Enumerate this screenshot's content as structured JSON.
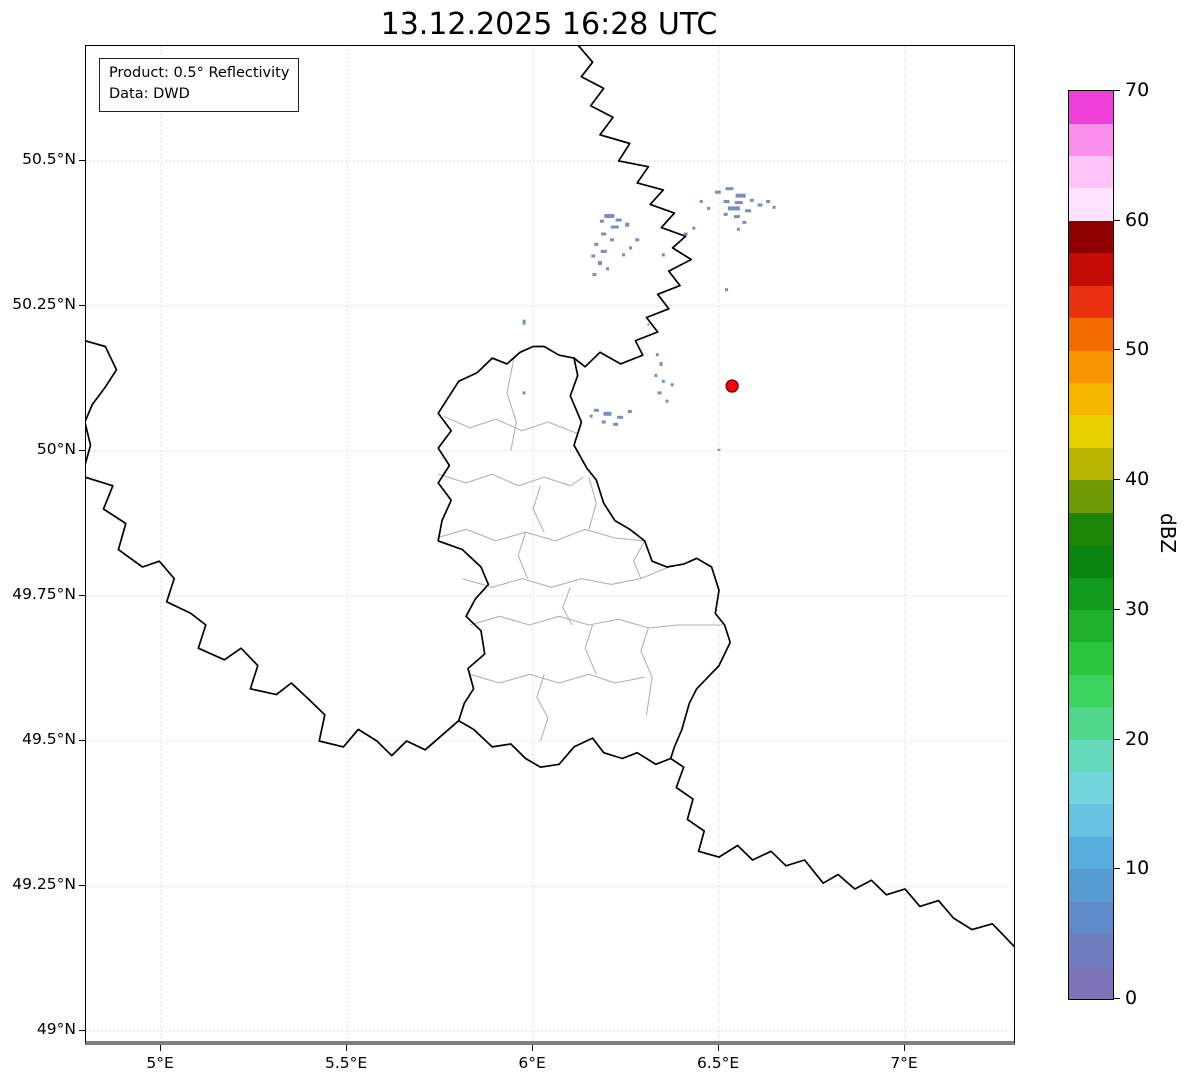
{
  "title": "13.12.2025 16:28 UTC",
  "info_box": {
    "product": "Product: 0.5° Reflectivity",
    "data_source": "Data: DWD"
  },
  "axes": {
    "x_ticks": [
      {
        "label": "5°E",
        "lon": 5.0
      },
      {
        "label": "5.5°E",
        "lon": 5.5
      },
      {
        "label": "6°E",
        "lon": 6.0
      },
      {
        "label": "6.5°E",
        "lon": 6.5
      },
      {
        "label": "7°E",
        "lon": 7.0
      }
    ],
    "y_ticks": [
      {
        "label": "50.5°N",
        "lat": 50.5
      },
      {
        "label": "50.25°N",
        "lat": 50.25
      },
      {
        "label": "50°N",
        "lat": 50.0
      },
      {
        "label": "49.75°N",
        "lat": 49.75
      },
      {
        "label": "49.5°N",
        "lat": 49.5
      },
      {
        "label": "49.25°N",
        "lat": 49.25
      },
      {
        "label": "49°N",
        "lat": 49.0
      }
    ]
  },
  "colorbar": {
    "label": "dBZ",
    "unit_min": 0,
    "unit_max": 70,
    "ticks": [
      0,
      10,
      20,
      30,
      40,
      50,
      60,
      70
    ],
    "colors": [
      "#7e72b8",
      "#6f7cc0",
      "#5f8ac8",
      "#569bd2",
      "#57aede",
      "#67c2e4",
      "#73d4dd",
      "#66d9bd",
      "#4fd88c",
      "#3bd45e",
      "#2cc53e",
      "#1eb02a",
      "#129a1c",
      "#0a8512",
      "#1d8508",
      "#6f9a04",
      "#b8b400",
      "#e8cf00",
      "#f6b600",
      "#f79500",
      "#f26a00",
      "#e93010",
      "#c50b06",
      "#8f0000",
      "#ffe2ff",
      "#ffc2f9",
      "#fb90ec",
      "#ee3fd8"
    ]
  },
  "map_data": {
    "projection": {
      "lon_min": 4.798,
      "lon_max": 7.293,
      "lat_min": 48.983,
      "lat_max": 50.698
    },
    "borders_country": [
      [
        [
          6.12,
          50.7
        ],
        [
          6.16,
          50.67
        ],
        [
          6.13,
          50.645
        ],
        [
          6.19,
          50.625
        ],
        [
          6.155,
          50.595
        ],
        [
          6.215,
          50.575
        ],
        [
          6.18,
          50.545
        ],
        [
          6.26,
          50.53
        ],
        [
          6.23,
          50.5
        ],
        [
          6.31,
          50.49
        ],
        [
          6.28,
          50.462
        ],
        [
          6.35,
          50.45
        ],
        [
          6.315,
          50.425
        ],
        [
          6.38,
          50.41
        ],
        [
          6.345,
          50.385
        ],
        [
          6.41,
          50.37
        ],
        [
          6.375,
          50.35
        ],
        [
          6.425,
          50.33
        ],
        [
          6.365,
          50.31
        ],
        [
          6.395,
          50.285
        ],
        [
          6.335,
          50.27
        ],
        [
          6.365,
          50.245
        ],
        [
          6.305,
          50.23
        ],
        [
          6.335,
          50.205
        ],
        [
          6.275,
          50.19
        ],
        [
          6.295,
          50.165
        ],
        [
          6.235,
          50.15
        ],
        [
          6.18,
          50.17
        ],
        [
          6.14,
          50.145
        ],
        [
          6.11,
          50.16
        ]
      ],
      [
        [
          6.03,
          50.18
        ],
        [
          6.07,
          50.165
        ],
        [
          6.11,
          50.16
        ],
        [
          6.12,
          50.13
        ],
        [
          6.1,
          50.095
        ],
        [
          6.13,
          50.05
        ],
        [
          6.11,
          50.01
        ],
        [
          6.145,
          49.97
        ],
        [
          6.17,
          49.95
        ],
        [
          6.19,
          49.91
        ],
        [
          6.22,
          49.88
        ],
        [
          6.26,
          49.865
        ],
        [
          6.3,
          49.845
        ],
        [
          6.32,
          49.81
        ],
        [
          6.36,
          49.8
        ],
        [
          6.405,
          49.805
        ],
        [
          6.44,
          49.815
        ],
        [
          6.48,
          49.8
        ],
        [
          6.5,
          49.76
        ],
        [
          6.49,
          49.72
        ],
        [
          6.515,
          49.7
        ],
        [
          6.53,
          49.67
        ],
        [
          6.5,
          49.63
        ],
        [
          6.47,
          49.61
        ],
        [
          6.44,
          49.59
        ],
        [
          6.42,
          49.565
        ],
        [
          6.4,
          49.52
        ],
        [
          6.38,
          49.49
        ],
        [
          6.37,
          49.47
        ],
        [
          6.33,
          49.46
        ],
        [
          6.28,
          49.48
        ],
        [
          6.24,
          49.47
        ],
        [
          6.19,
          49.48
        ],
        [
          6.16,
          49.505
        ],
        [
          6.11,
          49.49
        ],
        [
          6.07,
          49.46
        ],
        [
          6.02,
          49.455
        ],
        [
          5.98,
          49.47
        ],
        [
          5.94,
          49.495
        ],
        [
          5.89,
          49.49
        ],
        [
          5.84,
          49.52
        ],
        [
          5.8,
          49.535
        ],
        [
          5.815,
          49.565
        ],
        [
          5.84,
          49.59
        ],
        [
          5.825,
          49.625
        ],
        [
          5.87,
          49.65
        ],
        [
          5.86,
          49.69
        ],
        [
          5.82,
          49.715
        ],
        [
          5.845,
          49.745
        ],
        [
          5.88,
          49.77
        ],
        [
          5.86,
          49.8
        ],
        [
          5.81,
          49.83
        ],
        [
          5.745,
          49.845
        ],
        [
          5.755,
          49.88
        ],
        [
          5.78,
          49.915
        ],
        [
          5.745,
          49.945
        ],
        [
          5.775,
          49.975
        ],
        [
          5.745,
          50.005
        ],
        [
          5.78,
          50.035
        ],
        [
          5.745,
          50.065
        ],
        [
          5.775,
          50.095
        ],
        [
          5.8,
          50.12
        ],
        [
          5.85,
          50.135
        ],
        [
          5.89,
          50.16
        ],
        [
          5.93,
          50.15
        ],
        [
          5.965,
          50.17
        ],
        [
          6.0,
          50.18
        ],
        [
          6.03,
          50.18
        ]
      ],
      [
        [
          4.795,
          50.19
        ],
        [
          4.85,
          50.18
        ],
        [
          4.88,
          50.14
        ],
        [
          4.85,
          50.11
        ],
        [
          4.815,
          50.08
        ],
        [
          4.795,
          50.05
        ],
        [
          4.81,
          50.01
        ],
        [
          4.795,
          49.975
        ]
      ],
      [
        [
          4.795,
          49.955
        ],
        [
          4.87,
          49.94
        ],
        [
          4.845,
          49.9
        ],
        [
          4.905,
          49.875
        ],
        [
          4.885,
          49.83
        ],
        [
          4.95,
          49.8
        ],
        [
          4.995,
          49.81
        ],
        [
          5.035,
          49.78
        ],
        [
          5.015,
          49.74
        ],
        [
          5.08,
          49.72
        ],
        [
          5.12,
          49.7
        ],
        [
          5.1,
          49.66
        ],
        [
          5.17,
          49.64
        ],
        [
          5.215,
          49.66
        ],
        [
          5.26,
          49.63
        ],
        [
          5.24,
          49.59
        ],
        [
          5.31,
          49.58
        ],
        [
          5.35,
          49.6
        ],
        [
          5.4,
          49.57
        ],
        [
          5.44,
          49.545
        ],
        [
          5.425,
          49.5
        ],
        [
          5.49,
          49.49
        ],
        [
          5.53,
          49.52
        ],
        [
          5.58,
          49.5
        ],
        [
          5.62,
          49.475
        ],
        [
          5.66,
          49.5
        ],
        [
          5.71,
          49.485
        ],
        [
          5.755,
          49.51
        ],
        [
          5.8,
          49.535
        ]
      ],
      [
        [
          6.37,
          49.47
        ],
        [
          6.405,
          49.455
        ],
        [
          6.385,
          49.42
        ],
        [
          6.43,
          49.4
        ],
        [
          6.415,
          49.365
        ],
        [
          6.46,
          49.345
        ],
        [
          6.445,
          49.31
        ],
        [
          6.5,
          49.3
        ],
        [
          6.55,
          49.32
        ],
        [
          6.59,
          49.295
        ],
        [
          6.64,
          49.31
        ],
        [
          6.68,
          49.285
        ],
        [
          6.73,
          49.295
        ],
        [
          6.78,
          49.255
        ],
        [
          6.82,
          49.27
        ],
        [
          6.865,
          49.245
        ],
        [
          6.91,
          49.26
        ],
        [
          6.95,
          49.235
        ],
        [
          7.0,
          49.245
        ],
        [
          7.04,
          49.215
        ],
        [
          7.09,
          49.225
        ],
        [
          7.13,
          49.195
        ],
        [
          7.18,
          49.175
        ],
        [
          7.235,
          49.185
        ],
        [
          7.295,
          49.145
        ]
      ]
    ],
    "borders_district": [
      [
        [
          5.76,
          50.06
        ],
        [
          5.83,
          50.04
        ],
        [
          5.9,
          50.055
        ],
        [
          5.97,
          50.035
        ],
        [
          6.04,
          50.05
        ],
        [
          6.12,
          50.03
        ]
      ],
      [
        [
          5.745,
          49.96
        ],
        [
          5.82,
          49.945
        ],
        [
          5.89,
          49.96
        ],
        [
          5.96,
          49.94
        ],
        [
          6.03,
          49.955
        ],
        [
          6.1,
          49.94
        ],
        [
          6.135,
          49.955
        ]
      ],
      [
        [
          5.95,
          50.165
        ],
        [
          5.93,
          50.1
        ],
        [
          5.955,
          50.05
        ],
        [
          5.94,
          50.0
        ]
      ],
      [
        [
          5.74,
          49.85
        ],
        [
          5.82,
          49.865
        ],
        [
          5.9,
          49.845
        ],
        [
          5.98,
          49.86
        ],
        [
          6.06,
          49.845
        ],
        [
          6.14,
          49.865
        ],
        [
          6.22,
          49.85
        ],
        [
          6.3,
          49.845
        ]
      ],
      [
        [
          6.02,
          49.94
        ],
        [
          6.0,
          49.9
        ],
        [
          6.03,
          49.86
        ]
      ],
      [
        [
          6.15,
          49.955
        ],
        [
          6.17,
          49.91
        ],
        [
          6.15,
          49.865
        ]
      ],
      [
        [
          5.81,
          49.78
        ],
        [
          5.89,
          49.765
        ],
        [
          5.97,
          49.78
        ],
        [
          6.05,
          49.765
        ],
        [
          6.13,
          49.78
        ],
        [
          6.21,
          49.77
        ],
        [
          6.29,
          49.78
        ],
        [
          6.365,
          49.8
        ]
      ],
      [
        [
          5.98,
          49.86
        ],
        [
          5.96,
          49.82
        ],
        [
          5.985,
          49.78
        ]
      ],
      [
        [
          6.3,
          49.845
        ],
        [
          6.27,
          49.81
        ],
        [
          6.29,
          49.78
        ]
      ],
      [
        [
          5.83,
          49.7
        ],
        [
          5.91,
          49.715
        ],
        [
          5.99,
          49.7
        ],
        [
          6.07,
          49.715
        ],
        [
          6.15,
          49.7
        ],
        [
          6.23,
          49.71
        ],
        [
          6.31,
          49.695
        ],
        [
          6.39,
          49.7
        ],
        [
          6.51,
          49.7
        ]
      ],
      [
        [
          6.1,
          49.765
        ],
        [
          6.08,
          49.73
        ],
        [
          6.105,
          49.7
        ]
      ],
      [
        [
          6.31,
          49.695
        ],
        [
          6.29,
          49.655
        ],
        [
          6.32,
          49.61
        ],
        [
          6.305,
          49.545
        ]
      ],
      [
        [
          5.83,
          49.615
        ],
        [
          5.91,
          49.6
        ],
        [
          5.99,
          49.615
        ],
        [
          6.07,
          49.6
        ],
        [
          6.15,
          49.615
        ],
        [
          6.22,
          49.6
        ],
        [
          6.3,
          49.61
        ]
      ],
      [
        [
          6.03,
          49.615
        ],
        [
          6.01,
          49.575
        ],
        [
          6.04,
          49.54
        ],
        [
          6.02,
          49.5
        ]
      ],
      [
        [
          6.16,
          49.7
        ],
        [
          6.14,
          49.66
        ],
        [
          6.17,
          49.615
        ]
      ]
    ],
    "radar_echoes": {
      "color": "#7b8cc4",
      "cells": [
        [
          6.205,
          50.405,
          10,
          4
        ],
        [
          6.23,
          50.398,
          6,
          3
        ],
        [
          6.185,
          50.396,
          4,
          3
        ],
        [
          6.22,
          50.386,
          8,
          3
        ],
        [
          6.253,
          50.39,
          4,
          4
        ],
        [
          6.19,
          50.374,
          5,
          3
        ],
        [
          6.212,
          50.364,
          4,
          3
        ],
        [
          6.17,
          50.356,
          4,
          3
        ],
        [
          6.19,
          50.344,
          6,
          3
        ],
        [
          6.162,
          50.336,
          4,
          3
        ],
        [
          6.18,
          50.324,
          4,
          4
        ],
        [
          6.2,
          50.314,
          3,
          3
        ],
        [
          6.165,
          50.304,
          4,
          3
        ],
        [
          6.28,
          50.364,
          4,
          3
        ],
        [
          6.262,
          50.35,
          3,
          3
        ],
        [
          6.243,
          50.338,
          3,
          3
        ],
        [
          6.497,
          50.446,
          6,
          3
        ],
        [
          6.528,
          50.452,
          8,
          3
        ],
        [
          6.558,
          50.44,
          10,
          4
        ],
        [
          6.52,
          50.43,
          6,
          3
        ],
        [
          6.553,
          50.428,
          8,
          3
        ],
        [
          6.588,
          50.432,
          4,
          3
        ],
        [
          6.54,
          50.418,
          12,
          4
        ],
        [
          6.578,
          50.414,
          6,
          3
        ],
        [
          6.61,
          50.424,
          5,
          3
        ],
        [
          6.632,
          50.43,
          4,
          3
        ],
        [
          6.548,
          50.404,
          6,
          3
        ],
        [
          6.518,
          50.408,
          4,
          3
        ],
        [
          6.568,
          50.394,
          4,
          3
        ],
        [
          6.552,
          50.382,
          3,
          3
        ],
        [
          6.648,
          50.42,
          3,
          3
        ],
        [
          6.452,
          50.43,
          3,
          3
        ],
        [
          6.472,
          50.418,
          3,
          3
        ],
        [
          6.41,
          50.374,
          4,
          3
        ],
        [
          6.432,
          50.384,
          3,
          3
        ],
        [
          6.35,
          50.338,
          3,
          3
        ],
        [
          6.334,
          50.166,
          3,
          3
        ],
        [
          6.344,
          50.15,
          3,
          4
        ],
        [
          6.33,
          50.13,
          3,
          3
        ],
        [
          6.35,
          50.12,
          3,
          3
        ],
        [
          6.34,
          50.1,
          4,
          3
        ],
        [
          6.36,
          50.086,
          3,
          3
        ],
        [
          6.374,
          50.114,
          3,
          3
        ],
        [
          6.17,
          50.07,
          5,
          3
        ],
        [
          6.2,
          50.064,
          8,
          4
        ],
        [
          6.234,
          50.058,
          6,
          3
        ],
        [
          6.26,
          50.068,
          4,
          3
        ],
        [
          6.19,
          50.05,
          4,
          3
        ],
        [
          6.222,
          50.046,
          5,
          3
        ],
        [
          6.156,
          50.06,
          3,
          3
        ],
        [
          5.976,
          50.222,
          3,
          5
        ],
        [
          6.52,
          50.278,
          3,
          3
        ],
        [
          5.976,
          50.1,
          3,
          3
        ],
        [
          6.5,
          50.002,
          3,
          2
        ],
        [
          6.31,
          50.218,
          2,
          2
        ]
      ]
    },
    "radar_site": {
      "lon": 6.535,
      "lat": 50.112,
      "color": "#ff0000",
      "edge": "#5a0000"
    }
  }
}
